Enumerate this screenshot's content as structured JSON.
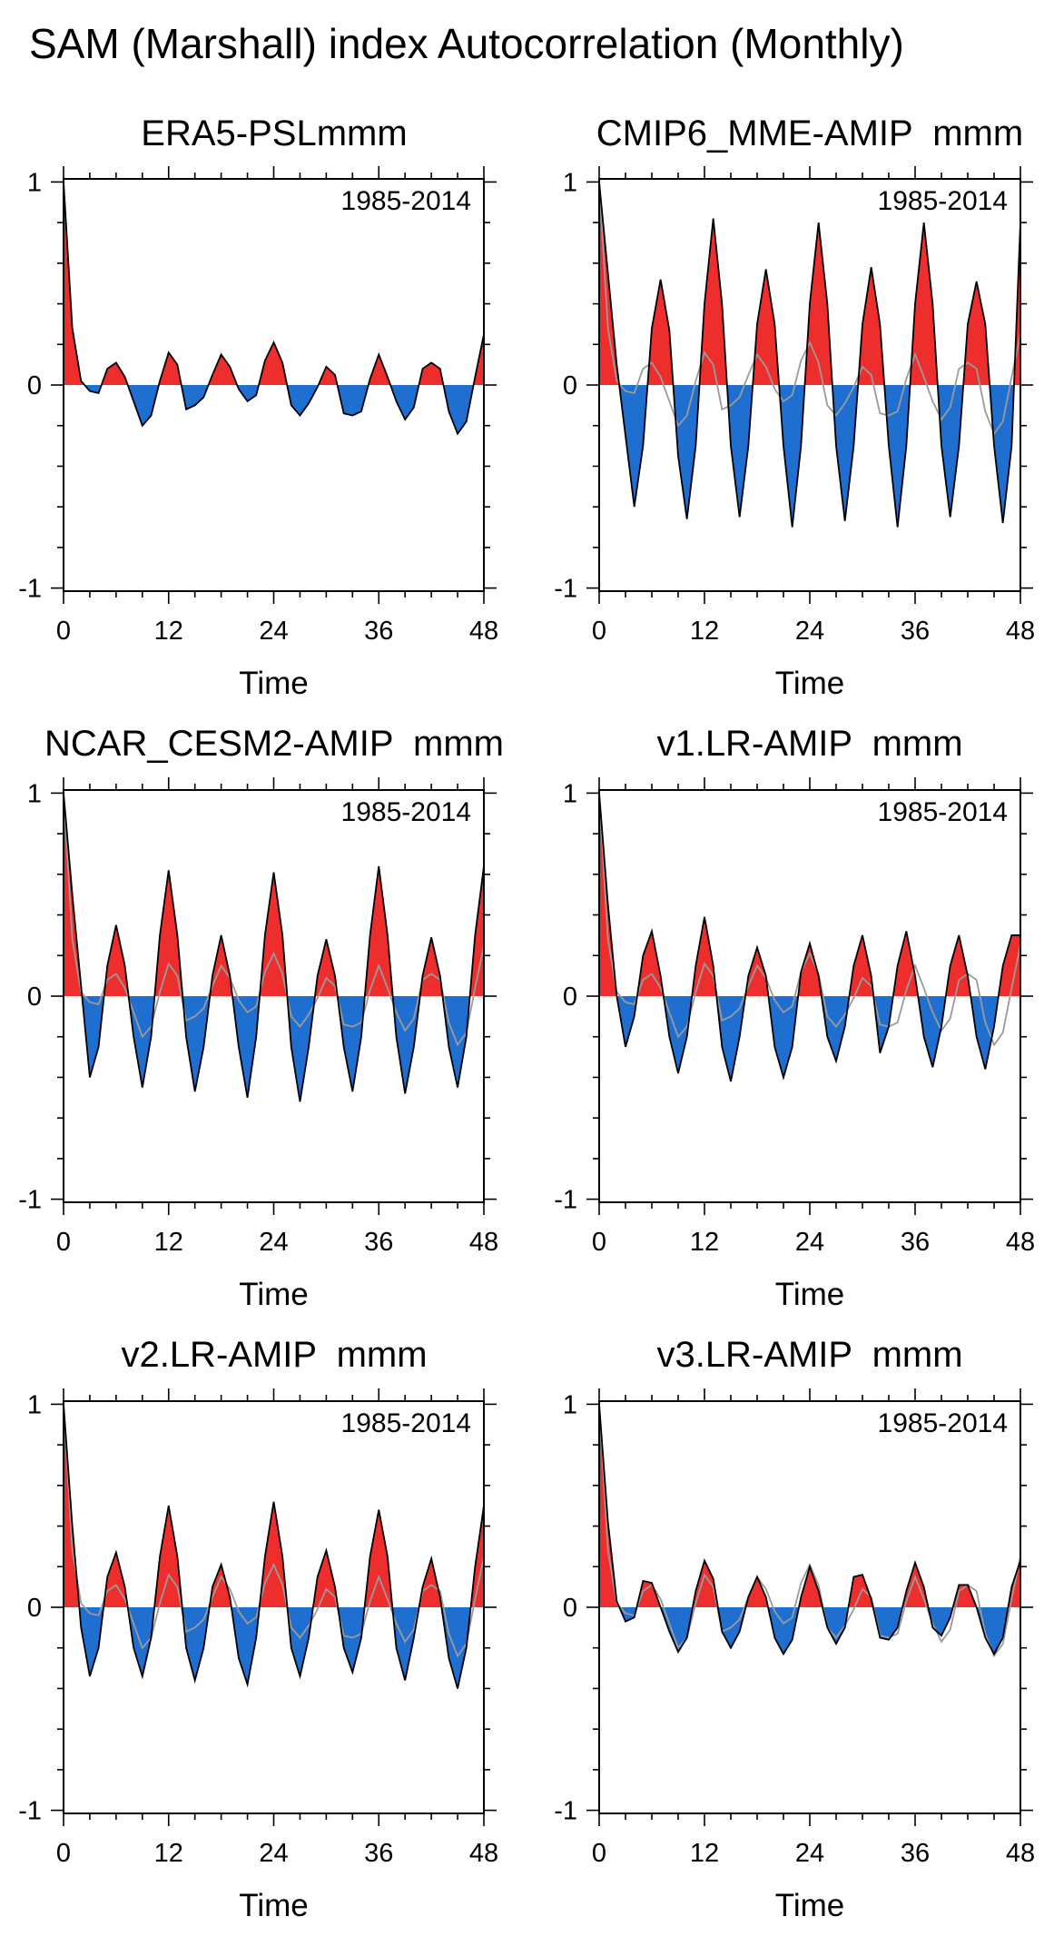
{
  "figure": {
    "title": "SAM (Marshall) index Autocorrelation (Monthly)"
  },
  "colors": {
    "positive": "#ee2d2d",
    "negative": "#1f6fd1",
    "line": "#000000",
    "reference": "#9a9a9a"
  },
  "chart_data": [
    {
      "type": "area",
      "title": "ERA5-PSLmmm",
      "period_label": "1985-2014",
      "xlabel": "Time",
      "ylabel": "",
      "xlim": [
        0,
        48
      ],
      "ylim": [
        -1,
        1
      ],
      "xticks": [
        0,
        12,
        24,
        36,
        48
      ],
      "yticks": [
        -1,
        0,
        1
      ],
      "x": [
        0,
        1,
        2,
        3,
        4,
        5,
        6,
        7,
        8,
        9,
        10,
        11,
        12,
        13,
        14,
        15,
        16,
        17,
        18,
        19,
        20,
        21,
        22,
        23,
        24,
        25,
        26,
        27,
        28,
        29,
        30,
        31,
        32,
        33,
        34,
        35,
        36,
        37,
        38,
        39,
        40,
        41,
        42,
        43,
        44,
        45,
        46,
        47,
        48
      ],
      "series": [
        {
          "name": "autocorrelation",
          "values": [
            1.0,
            0.28,
            0.02,
            -0.03,
            -0.04,
            0.08,
            0.11,
            0.04,
            -0.08,
            -0.2,
            -0.15,
            0.02,
            0.16,
            0.1,
            -0.12,
            -0.1,
            -0.06,
            0.05,
            0.15,
            0.09,
            -0.02,
            -0.08,
            -0.05,
            0.12,
            0.21,
            0.11,
            -0.1,
            -0.15,
            -0.09,
            -0.01,
            0.09,
            0.05,
            -0.14,
            -0.15,
            -0.13,
            0.03,
            0.15,
            0.04,
            -0.08,
            -0.17,
            -0.11,
            0.08,
            0.11,
            0.08,
            -0.13,
            -0.24,
            -0.18,
            0.04,
            0.25
          ]
        }
      ]
    },
    {
      "type": "area",
      "title": "CMIP6_MME-AMIP  mmm",
      "period_label": "1985-2014",
      "xlabel": "Time",
      "ylabel": "",
      "xlim": [
        0,
        48
      ],
      "ylim": [
        -1,
        1
      ],
      "xticks": [
        0,
        12,
        24,
        36,
        48
      ],
      "yticks": [
        -1,
        0,
        1
      ],
      "x": [
        0,
        1,
        2,
        3,
        4,
        5,
        6,
        7,
        8,
        9,
        10,
        11,
        12,
        13,
        14,
        15,
        16,
        17,
        18,
        19,
        20,
        21,
        22,
        23,
        24,
        25,
        26,
        27,
        28,
        29,
        30,
        31,
        32,
        33,
        34,
        35,
        36,
        37,
        38,
        39,
        40,
        41,
        42,
        43,
        44,
        45,
        46,
        47,
        48
      ],
      "series": [
        {
          "name": "autocorrelation",
          "values": [
            1.0,
            0.55,
            0.1,
            -0.25,
            -0.6,
            -0.3,
            0.28,
            0.52,
            0.27,
            -0.35,
            -0.66,
            -0.3,
            0.4,
            0.82,
            0.4,
            -0.3,
            -0.65,
            -0.3,
            0.3,
            0.57,
            0.3,
            -0.3,
            -0.7,
            -0.3,
            0.4,
            0.8,
            0.4,
            -0.3,
            -0.67,
            -0.3,
            0.3,
            0.58,
            0.3,
            -0.3,
            -0.7,
            -0.3,
            0.4,
            0.8,
            0.4,
            -0.3,
            -0.65,
            -0.3,
            0.3,
            0.51,
            0.3,
            -0.3,
            -0.68,
            -0.3,
            0.8
          ]
        },
        {
          "name": "reference",
          "values": [
            1.0,
            0.28,
            0.02,
            -0.03,
            -0.04,
            0.08,
            0.11,
            0.04,
            -0.08,
            -0.2,
            -0.15,
            0.02,
            0.16,
            0.1,
            -0.12,
            -0.1,
            -0.06,
            0.05,
            0.15,
            0.09,
            -0.02,
            -0.08,
            -0.05,
            0.12,
            0.21,
            0.11,
            -0.1,
            -0.15,
            -0.09,
            -0.01,
            0.09,
            0.05,
            -0.14,
            -0.15,
            -0.13,
            0.03,
            0.15,
            0.04,
            -0.08,
            -0.17,
            -0.11,
            0.08,
            0.11,
            0.08,
            -0.13,
            -0.24,
            -0.18,
            0.04,
            0.25
          ]
        }
      ]
    },
    {
      "type": "area",
      "title": "NCAR_CESM2-AMIP  mmm",
      "period_label": "1985-2014",
      "xlabel": "Time",
      "ylabel": "",
      "xlim": [
        0,
        48
      ],
      "ylim": [
        -1,
        1
      ],
      "xticks": [
        0,
        12,
        24,
        36,
        48
      ],
      "yticks": [
        -1,
        0,
        1
      ],
      "x": [
        0,
        1,
        2,
        3,
        4,
        5,
        6,
        7,
        8,
        9,
        10,
        11,
        12,
        13,
        14,
        15,
        16,
        17,
        18,
        19,
        20,
        21,
        22,
        23,
        24,
        25,
        26,
        27,
        28,
        29,
        30,
        31,
        32,
        33,
        34,
        35,
        36,
        37,
        38,
        39,
        40,
        41,
        42,
        43,
        44,
        45,
        46,
        47,
        48
      ],
      "series": [
        {
          "name": "autocorrelation",
          "values": [
            1.0,
            0.5,
            0.05,
            -0.4,
            -0.25,
            0.15,
            0.35,
            0.15,
            -0.2,
            -0.45,
            -0.2,
            0.3,
            0.62,
            0.3,
            -0.2,
            -0.47,
            -0.25,
            0.1,
            0.3,
            0.1,
            -0.25,
            -0.5,
            -0.2,
            0.3,
            0.61,
            0.3,
            -0.25,
            -0.52,
            -0.25,
            0.1,
            0.28,
            0.1,
            -0.25,
            -0.47,
            -0.2,
            0.3,
            0.64,
            0.3,
            -0.2,
            -0.48,
            -0.25,
            0.1,
            0.29,
            0.1,
            -0.25,
            -0.45,
            -0.2,
            0.3,
            0.64
          ]
        },
        {
          "name": "reference",
          "values": [
            1.0,
            0.28,
            0.02,
            -0.03,
            -0.04,
            0.08,
            0.11,
            0.04,
            -0.08,
            -0.2,
            -0.15,
            0.02,
            0.16,
            0.1,
            -0.12,
            -0.1,
            -0.06,
            0.05,
            0.15,
            0.09,
            -0.02,
            -0.08,
            -0.05,
            0.12,
            0.21,
            0.11,
            -0.1,
            -0.15,
            -0.09,
            -0.01,
            0.09,
            0.05,
            -0.14,
            -0.15,
            -0.13,
            0.03,
            0.15,
            0.04,
            -0.08,
            -0.17,
            -0.11,
            0.08,
            0.11,
            0.08,
            -0.13,
            -0.24,
            -0.18,
            0.04,
            0.25
          ]
        }
      ]
    },
    {
      "type": "area",
      "title": "v1.LR-AMIP  mmm",
      "period_label": "1985-2014",
      "xlabel": "Time",
      "ylabel": "",
      "xlim": [
        0,
        48
      ],
      "ylim": [
        -1,
        1
      ],
      "xticks": [
        0,
        12,
        24,
        36,
        48
      ],
      "yticks": [
        -1,
        0,
        1
      ],
      "x": [
        0,
        1,
        2,
        3,
        4,
        5,
        6,
        7,
        8,
        9,
        10,
        11,
        12,
        13,
        14,
        15,
        16,
        17,
        18,
        19,
        20,
        21,
        22,
        23,
        24,
        25,
        26,
        27,
        28,
        29,
        30,
        31,
        32,
        33,
        34,
        35,
        36,
        37,
        38,
        39,
        40,
        41,
        42,
        43,
        44,
        45,
        46,
        47,
        48
      ],
      "series": [
        {
          "name": "autocorrelation",
          "values": [
            1.0,
            0.45,
            0.0,
            -0.25,
            -0.1,
            0.2,
            0.32,
            0.1,
            -0.2,
            -0.38,
            -0.2,
            0.15,
            0.39,
            0.15,
            -0.25,
            -0.42,
            -0.2,
            0.1,
            0.24,
            0.1,
            -0.25,
            -0.4,
            -0.25,
            0.12,
            0.26,
            0.1,
            -0.2,
            -0.32,
            -0.15,
            0.15,
            0.3,
            0.1,
            -0.28,
            -0.15,
            0.15,
            0.32,
            0.1,
            -0.2,
            -0.35,
            -0.15,
            0.15,
            0.3,
            0.1,
            -0.2,
            -0.36,
            -0.15,
            0.15,
            0.3,
            0.3
          ]
        },
        {
          "name": "reference",
          "values": [
            1.0,
            0.28,
            0.02,
            -0.03,
            -0.04,
            0.08,
            0.11,
            0.04,
            -0.08,
            -0.2,
            -0.15,
            0.02,
            0.16,
            0.1,
            -0.12,
            -0.1,
            -0.06,
            0.05,
            0.15,
            0.09,
            -0.02,
            -0.08,
            -0.05,
            0.12,
            0.21,
            0.11,
            -0.1,
            -0.15,
            -0.09,
            -0.01,
            0.09,
            0.05,
            -0.14,
            -0.15,
            -0.13,
            0.03,
            0.15,
            0.04,
            -0.08,
            -0.17,
            -0.11,
            0.08,
            0.11,
            0.08,
            -0.13,
            -0.24,
            -0.18,
            0.04,
            0.25
          ]
        }
      ]
    },
    {
      "type": "area",
      "title": "v2.LR-AMIP  mmm",
      "period_label": "1985-2014",
      "xlabel": "Time",
      "ylabel": "",
      "xlim": [
        0,
        48
      ],
      "ylim": [
        -1,
        1
      ],
      "xticks": [
        0,
        12,
        24,
        36,
        48
      ],
      "yticks": [
        -1,
        0,
        1
      ],
      "x": [
        0,
        1,
        2,
        3,
        4,
        5,
        6,
        7,
        8,
        9,
        10,
        11,
        12,
        13,
        14,
        15,
        16,
        17,
        18,
        19,
        20,
        21,
        22,
        23,
        24,
        25,
        26,
        27,
        28,
        29,
        30,
        31,
        32,
        33,
        34,
        35,
        36,
        37,
        38,
        39,
        40,
        41,
        42,
        43,
        44,
        45,
        46,
        47,
        48
      ],
      "series": [
        {
          "name": "autocorrelation",
          "values": [
            1.0,
            0.4,
            -0.1,
            -0.34,
            -0.2,
            0.15,
            0.27,
            0.1,
            -0.2,
            -0.34,
            -0.15,
            0.25,
            0.5,
            0.25,
            -0.2,
            -0.36,
            -0.2,
            0.1,
            0.21,
            0.05,
            -0.25,
            -0.38,
            -0.15,
            0.25,
            0.52,
            0.25,
            -0.2,
            -0.34,
            -0.15,
            0.15,
            0.28,
            0.1,
            -0.2,
            -0.32,
            -0.15,
            0.25,
            0.48,
            0.25,
            -0.2,
            -0.36,
            -0.15,
            0.1,
            0.24,
            0.05,
            -0.25,
            -0.4,
            -0.2,
            0.2,
            0.5
          ]
        },
        {
          "name": "reference",
          "values": [
            1.0,
            0.28,
            0.02,
            -0.03,
            -0.04,
            0.08,
            0.11,
            0.04,
            -0.08,
            -0.2,
            -0.15,
            0.02,
            0.16,
            0.1,
            -0.12,
            -0.1,
            -0.06,
            0.05,
            0.15,
            0.09,
            -0.02,
            -0.08,
            -0.05,
            0.12,
            0.21,
            0.11,
            -0.1,
            -0.15,
            -0.09,
            -0.01,
            0.09,
            0.05,
            -0.14,
            -0.15,
            -0.13,
            0.03,
            0.15,
            0.04,
            -0.08,
            -0.17,
            -0.11,
            0.08,
            0.11,
            0.08,
            -0.13,
            -0.24,
            -0.18,
            0.04,
            0.25
          ]
        }
      ]
    },
    {
      "type": "area",
      "title": "v3.LR-AMIP  mmm",
      "period_label": "1985-2014",
      "xlabel": "Time",
      "ylabel": "",
      "xlim": [
        0,
        48
      ],
      "ylim": [
        -1,
        1
      ],
      "xticks": [
        0,
        12,
        24,
        36,
        48
      ],
      "yticks": [
        -1,
        0,
        1
      ],
      "x": [
        0,
        1,
        2,
        3,
        4,
        5,
        6,
        7,
        8,
        9,
        10,
        11,
        12,
        13,
        14,
        15,
        16,
        17,
        18,
        19,
        20,
        21,
        22,
        23,
        24,
        25,
        26,
        27,
        28,
        29,
        30,
        31,
        32,
        33,
        34,
        35,
        36,
        37,
        38,
        39,
        40,
        41,
        42,
        43,
        44,
        45,
        46,
        47,
        48
      ],
      "series": [
        {
          "name": "autocorrelation",
          "values": [
            1.0,
            0.42,
            0.03,
            -0.07,
            -0.05,
            0.13,
            0.12,
            0.0,
            -0.12,
            -0.22,
            -0.15,
            0.08,
            0.23,
            0.14,
            -0.12,
            -0.2,
            -0.12,
            0.05,
            0.15,
            0.05,
            -0.15,
            -0.23,
            -0.16,
            0.05,
            0.2,
            0.08,
            -0.1,
            -0.18,
            -0.1,
            0.15,
            0.16,
            0.04,
            -0.15,
            -0.16,
            -0.1,
            0.08,
            0.22,
            0.1,
            -0.1,
            -0.14,
            -0.05,
            0.11,
            0.11,
            0.0,
            -0.15,
            -0.23,
            -0.15,
            0.1,
            0.23
          ]
        },
        {
          "name": "reference",
          "values": [
            1.0,
            0.28,
            0.02,
            -0.03,
            -0.04,
            0.08,
            0.11,
            0.04,
            -0.08,
            -0.2,
            -0.15,
            0.02,
            0.16,
            0.1,
            -0.12,
            -0.1,
            -0.06,
            0.05,
            0.15,
            0.09,
            -0.02,
            -0.08,
            -0.05,
            0.12,
            0.21,
            0.11,
            -0.1,
            -0.15,
            -0.09,
            -0.01,
            0.09,
            0.05,
            -0.14,
            -0.15,
            -0.13,
            0.03,
            0.15,
            0.04,
            -0.08,
            -0.17,
            -0.11,
            0.08,
            0.11,
            0.08,
            -0.13,
            -0.24,
            -0.18,
            0.04,
            0.25
          ]
        }
      ]
    }
  ]
}
